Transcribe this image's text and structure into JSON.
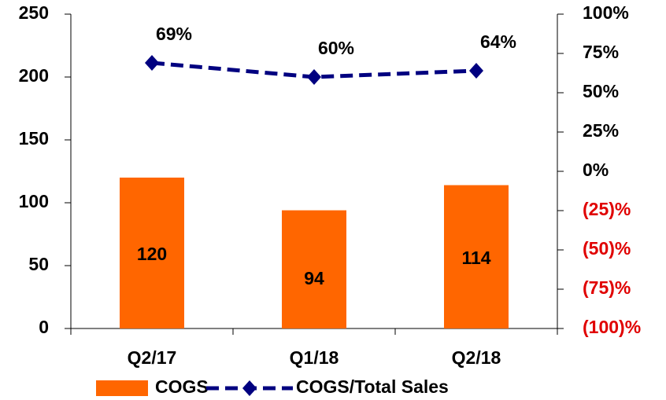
{
  "chart_data": {
    "type": "bar",
    "categories": [
      "Q2/17",
      "Q1/18",
      "Q2/18"
    ],
    "series": [
      {
        "name": "COGS",
        "type": "bar",
        "color": "#ff6600",
        "values": [
          120,
          94,
          114
        ]
      },
      {
        "name": "COGS/Total Sales",
        "type": "line",
        "axis": "y2",
        "color": "#000080",
        "values": [
          69,
          60,
          64
        ],
        "value_labels": [
          "69%",
          "60%",
          "64%"
        ]
      }
    ],
    "ylim": [
      0,
      250
    ],
    "yticks": [
      0,
      50,
      100,
      150,
      200,
      250
    ],
    "y2lim": [
      -100,
      100
    ],
    "y2ticks": [
      {
        "value": -100,
        "label": "(100)%"
      },
      {
        "value": -75,
        "label": "(75)%"
      },
      {
        "value": -50,
        "label": "(50)%"
      },
      {
        "value": -25,
        "label": "(25)%"
      },
      {
        "value": 0,
        "label": "0%"
      },
      {
        "value": 25,
        "label": "25%"
      },
      {
        "value": 50,
        "label": "50%"
      },
      {
        "value": 75,
        "label": "75%"
      },
      {
        "value": 100,
        "label": "100%"
      }
    ],
    "y2_negative_color": "#e00000",
    "legend": "bottom"
  }
}
